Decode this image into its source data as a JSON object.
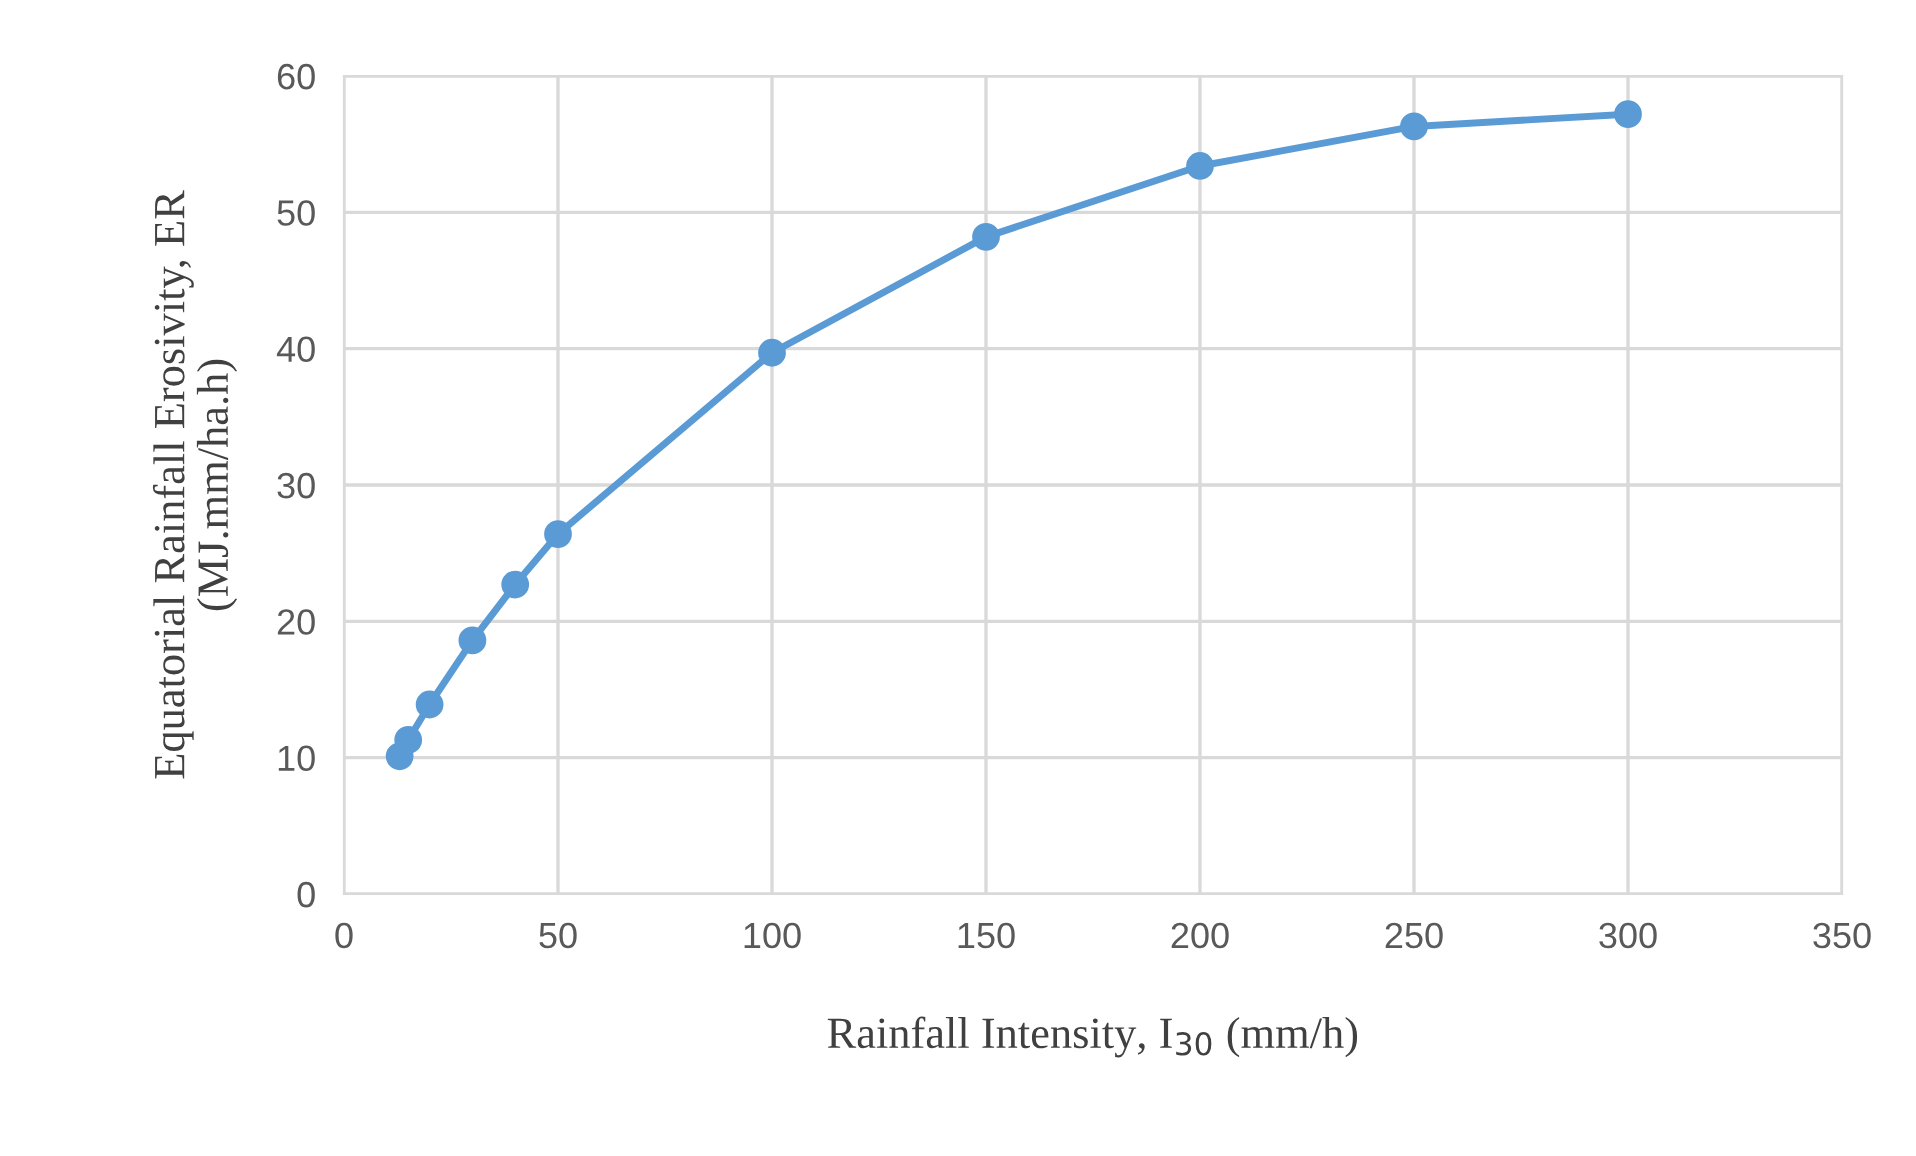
{
  "chart_data": {
    "type": "line",
    "xlabel": "Rainfall Intensity, I$_{30}$ (mm/h)",
    "ylabel": "Equatorial Rainfall Erosivity, ER\n(MJ.mm/ha.h)",
    "x": [
      13,
      15,
      20,
      30,
      40,
      50,
      100,
      150,
      200,
      250,
      300
    ],
    "series": [
      {
        "color": "#5b9bd5",
        "values": [
          10.1,
          11.3,
          13.9,
          18.6,
          22.7,
          26.4,
          39.7,
          48.2,
          53.4,
          56.3,
          57.2
        ]
      }
    ],
    "xlim": [
      0,
      350
    ],
    "xticks": [
      0,
      50,
      100,
      150,
      200,
      250,
      300,
      350
    ],
    "ylim": [
      0,
      60
    ],
    "yticks": [
      0,
      10,
      20,
      30,
      40,
      50,
      60
    ],
    "grid": true,
    "marker": "circle",
    "line_style": "solid"
  }
}
